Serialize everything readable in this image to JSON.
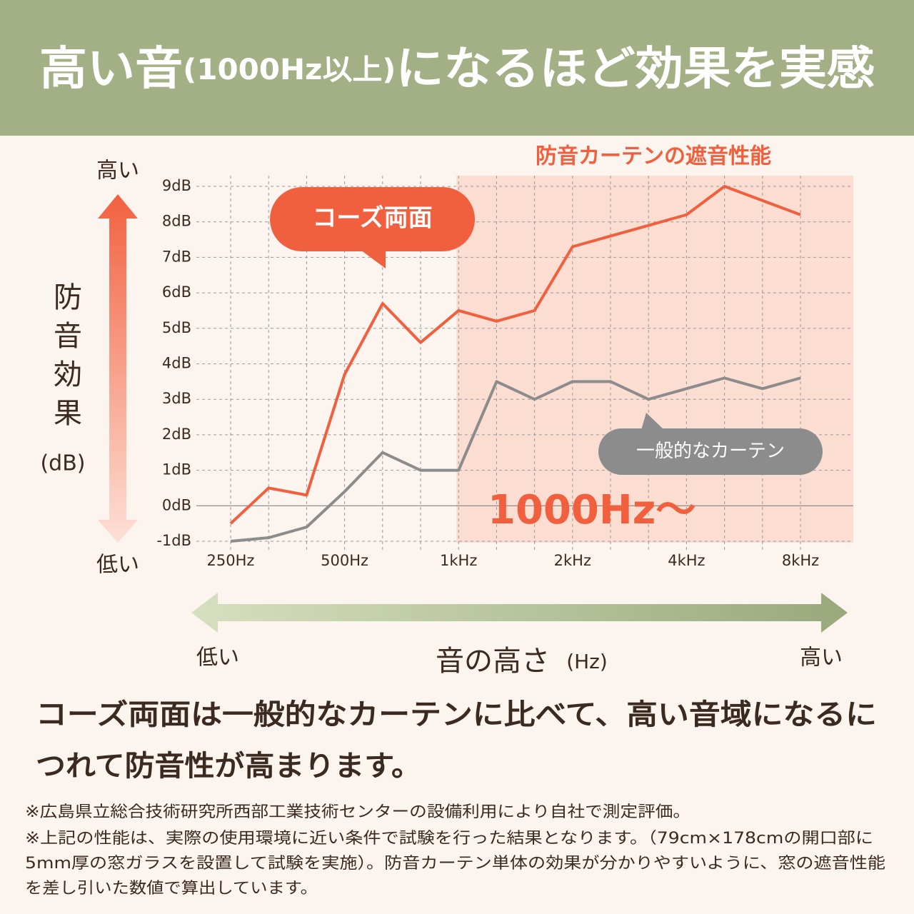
{
  "header": {
    "title": [
      "高い音",
      "(1000Hz以上)",
      "になるほど効果を実感"
    ]
  },
  "chart_data": {
    "type": "line",
    "y_axis_label": "防音効果",
    "y_axis_unit": "(dB)",
    "y_high": "高い",
    "y_low": "低い",
    "x_axis_label": "音の高さ",
    "x_axis_unit": "(Hz)",
    "x_low": "低い",
    "x_high": "高い",
    "highlight": {
      "label": "防音カーテンの遮音性能",
      "from": "1kHz",
      "annotation": "1000Hz〜"
    },
    "categories": [
      "250Hz",
      null,
      null,
      "500Hz",
      null,
      null,
      "1kHz",
      null,
      null,
      "2kHz",
      null,
      null,
      "4kHz",
      null,
      null,
      "8kHz"
    ],
    "series": [
      {
        "name": "コーズ両面",
        "color": "#f0603e",
        "values": [
          -0.5,
          0.5,
          0.3,
          3.7,
          5.7,
          4.6,
          5.5,
          5.2,
          5.5,
          7.3,
          7.6,
          7.9,
          8.2,
          9.0,
          8.6,
          8.2
        ]
      },
      {
        "name": "一般的なカーテン",
        "color": "#8c8c8c",
        "values": [
          -1.0,
          -0.9,
          -0.6,
          0.4,
          1.5,
          1.0,
          1.0,
          3.5,
          3.0,
          3.5,
          3.5,
          3.0,
          3.3,
          3.6,
          3.3,
          3.6
        ]
      }
    ],
    "ylim": [
      -1,
      9
    ],
    "yticks": [
      {
        "value": -1,
        "label": "-1dB"
      },
      {
        "value": 0,
        "label": "0dB"
      },
      {
        "value": 1,
        "label": "1dB"
      },
      {
        "value": 2,
        "label": "2dB"
      },
      {
        "value": 3,
        "label": "3dB"
      },
      {
        "value": 4,
        "label": "4dB"
      },
      {
        "value": 5,
        "label": "5dB"
      },
      {
        "value": 6,
        "label": "6dB"
      },
      {
        "value": 7,
        "label": "7dB"
      },
      {
        "value": 8,
        "label": "8dB"
      },
      {
        "value": 9,
        "label": "9dB"
      }
    ],
    "grid": true
  },
  "body": {
    "lines": [
      "コーズ両面は一般的なカーテンに比べて、高い音域になるに",
      "つれて防音性が高まります。"
    ]
  },
  "notes": {
    "lines": [
      "※広島県立総合技術研究所西部工業技術センターの設備利用により自社で測定評価。",
      "※上記の性能は、実際の使用環境に近い条件で試験を行った結果となります。（79cm×178cmの開口部に",
      "5mm厚の窓ガラスを設置して試験を実施）。防音カーテン単体の効果が分かりやすいように、窓の遮音性能",
      "を差し引いた数値で算出しています。"
    ]
  }
}
